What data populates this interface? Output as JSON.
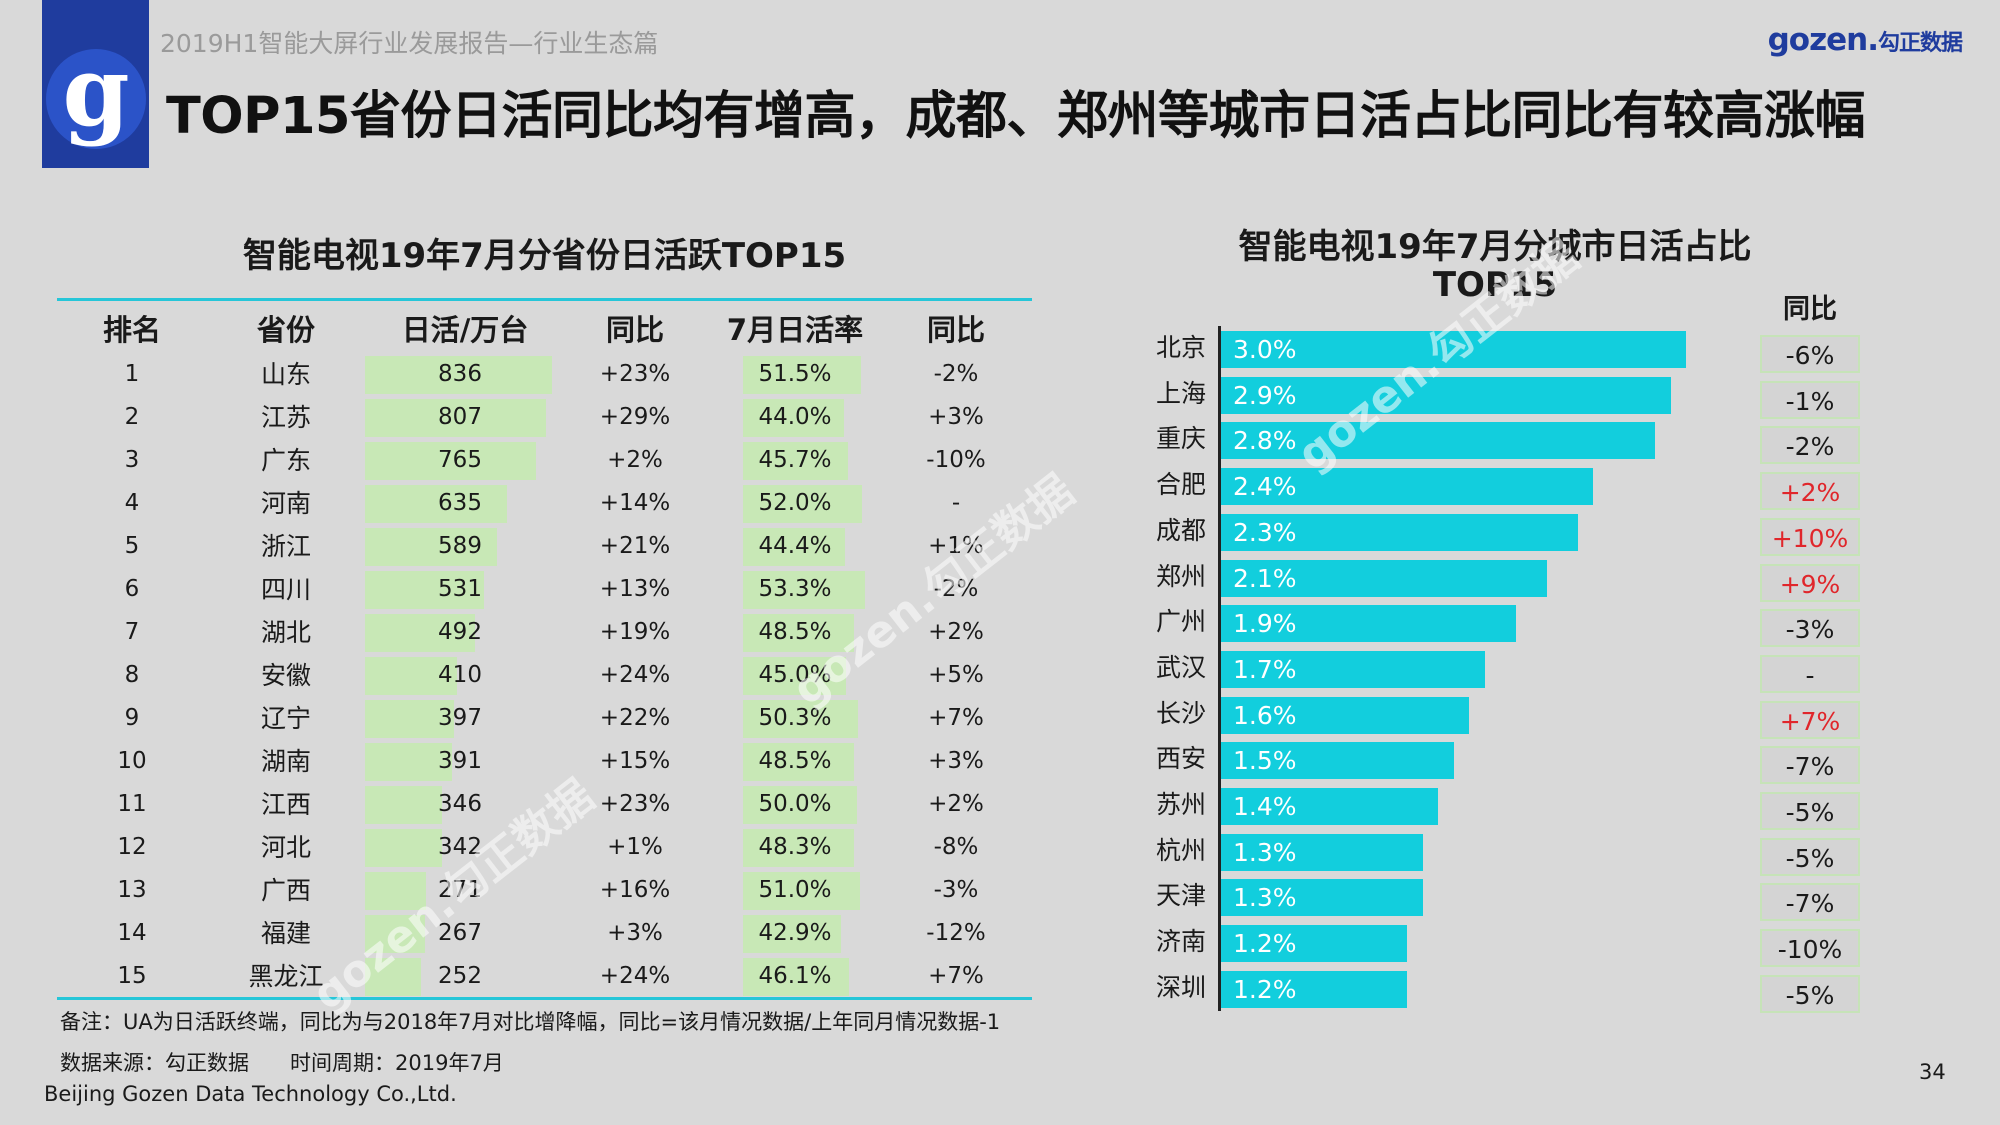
{
  "header": {
    "report_title": "2019H1智能大屏行业发展报告—行业生态篇",
    "headline": "TOP15省份日活同比均有增高，成都、郑州等城市日活占比同比有较高涨幅",
    "brand_en": "gozen.",
    "brand_cn": "勾正数据",
    "logo_letter": "g"
  },
  "table": {
    "title": "智能电视19年7月分省份日活跃TOP15",
    "columns": [
      "排名",
      "省份",
      "日活/万台",
      "同比",
      "7月日活率",
      "同比"
    ],
    "rows": [
      {
        "rank": "1",
        "province": "山东",
        "dau": 836,
        "dau_yoy": "+23%",
        "rate": "51.5%",
        "rate_yoy": "-2%"
      },
      {
        "rank": "2",
        "province": "江苏",
        "dau": 807,
        "dau_yoy": "+29%",
        "rate": "44.0%",
        "rate_yoy": "+3%"
      },
      {
        "rank": "3",
        "province": "广东",
        "dau": 765,
        "dau_yoy": "+2%",
        "rate": "45.7%",
        "rate_yoy": "-10%"
      },
      {
        "rank": "4",
        "province": "河南",
        "dau": 635,
        "dau_yoy": "+14%",
        "rate": "52.0%",
        "rate_yoy": "-"
      },
      {
        "rank": "5",
        "province": "浙江",
        "dau": 589,
        "dau_yoy": "+21%",
        "rate": "44.4%",
        "rate_yoy": "+1%"
      },
      {
        "rank": "6",
        "province": "四川",
        "dau": 531,
        "dau_yoy": "+13%",
        "rate": "53.3%",
        "rate_yoy": "-2%"
      },
      {
        "rank": "7",
        "province": "湖北",
        "dau": 492,
        "dau_yoy": "+19%",
        "rate": "48.5%",
        "rate_yoy": "+2%"
      },
      {
        "rank": "8",
        "province": "安徽",
        "dau": 410,
        "dau_yoy": "+24%",
        "rate": "45.0%",
        "rate_yoy": "+5%"
      },
      {
        "rank": "9",
        "province": "辽宁",
        "dau": 397,
        "dau_yoy": "+22%",
        "rate": "50.3%",
        "rate_yoy": "+7%"
      },
      {
        "rank": "10",
        "province": "湖南",
        "dau": 391,
        "dau_yoy": "+15%",
        "rate": "48.5%",
        "rate_yoy": "+3%"
      },
      {
        "rank": "11",
        "province": "江西",
        "dau": 346,
        "dau_yoy": "+23%",
        "rate": "50.0%",
        "rate_yoy": "+2%"
      },
      {
        "rank": "12",
        "province": "河北",
        "dau": 342,
        "dau_yoy": "+1%",
        "rate": "48.3%",
        "rate_yoy": "-8%"
      },
      {
        "rank": "13",
        "province": "广西",
        "dau": 271,
        "dau_yoy": "+16%",
        "rate": "51.0%",
        "rate_yoy": "-3%"
      },
      {
        "rank": "14",
        "province": "福建",
        "dau": 267,
        "dau_yoy": "+3%",
        "rate": "42.9%",
        "rate_yoy": "-12%"
      },
      {
        "rank": "15",
        "province": "黑龙江",
        "dau": 252,
        "dau_yoy": "+24%",
        "rate": "46.1%",
        "rate_yoy": "+7%"
      }
    ]
  },
  "chart_data": {
    "type": "bar",
    "orientation": "horizontal",
    "title": "智能电视19年7月分城市日活占比TOP15",
    "yoy_header": "同比",
    "categories": [
      "北京",
      "上海",
      "重庆",
      "合肥",
      "成都",
      "郑州",
      "广州",
      "武汉",
      "长沙",
      "西安",
      "苏州",
      "杭州",
      "天津",
      "济南",
      "深圳"
    ],
    "values": [
      3.0,
      2.9,
      2.8,
      2.4,
      2.3,
      2.1,
      1.9,
      1.7,
      1.6,
      1.5,
      1.4,
      1.3,
      1.3,
      1.2,
      1.2
    ],
    "labels": [
      "3.0%",
      "2.9%",
      "2.8%",
      "2.4%",
      "2.3%",
      "2.1%",
      "1.9%",
      "1.7%",
      "1.6%",
      "1.5%",
      "1.4%",
      "1.3%",
      "1.3%",
      "1.2%",
      "1.2%"
    ],
    "yoy": [
      "-6%",
      "-1%",
      "-2%",
      "+2%",
      "+10%",
      "+9%",
      "-3%",
      "-",
      "+7%",
      "-7%",
      "-5%",
      "-5%",
      "-7%",
      "-10%",
      "-5%"
    ],
    "unit": "%",
    "xlim": [
      0,
      3.0
    ]
  },
  "colors": {
    "bar": "#12cedd",
    "table_bar": "#c8e8b6",
    "positive": "#e0262b",
    "neutral": "#1a1a1a",
    "logo_bg": "#1f3c9e"
  },
  "watermark": "gozen.勾正数据",
  "footer": {
    "note": "备注：UA为日活跃终端，同比为与2018年7月对比增降幅，同比=该月情况数据/上年同月情况数据-1",
    "source": "数据来源：勾正数据",
    "period": "时间周期：2019年7月",
    "company": "Beijing Gozen Data Technology Co.,Ltd.",
    "page": "34"
  }
}
